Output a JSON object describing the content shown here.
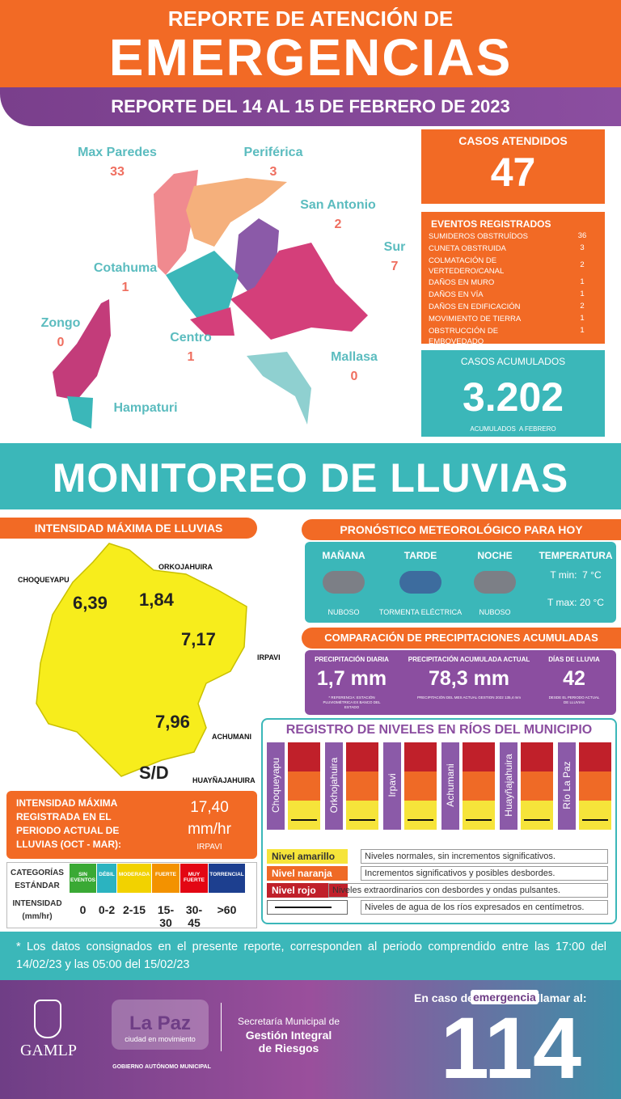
{
  "header": {
    "title_top": "REPORTE DE ATENCIÓN DE",
    "title_main": "EMERGENCIAS",
    "date": "REPORTE DEL 14 AL 15 DE FEBRERO DE 2023"
  },
  "zones": [
    {
      "name": "Max Paredes",
      "count": 33
    },
    {
      "name": "Periférica",
      "count": 3
    },
    {
      "name": "San Antonio",
      "count": 2
    },
    {
      "name": "Sur",
      "count": 7
    },
    {
      "name": "Cotahuma",
      "count": 1
    },
    {
      "name": "Zongo",
      "count": 0
    },
    {
      "name": "Centro",
      "count": 1
    },
    {
      "name": "Mallasa",
      "count": 0
    },
    {
      "name": "Hampaturi"
    }
  ],
  "cases": {
    "label": "CASOS ATENDIDOS",
    "value": 47
  },
  "events": {
    "title": "EVENTOS REGISTRADOS",
    "items": [
      {
        "label": "SUMIDEROS OBSTRUÍDOS",
        "count": 36
      },
      {
        "label": "CUNETA OBSTRUIDA",
        "count": 3
      },
      {
        "label": "COLMATACIÓN DE VERTEDERO/CANAL",
        "count": 2
      },
      {
        "label": "DAÑOS EN MURO",
        "count": 1
      },
      {
        "label": "DAÑOS EN VÍA",
        "count": 1
      },
      {
        "label": "DAÑOS EN EDIFICACIÓN",
        "count": 2
      },
      {
        "label": "MOVIMIENTO DE TIERRA",
        "count": 1
      },
      {
        "label": "OBSTRUCCIÓN DE EMBOVEDADO",
        "count": 1
      }
    ]
  },
  "accumulated": {
    "label": "CASOS ACUMULADOS",
    "value": "3.202",
    "note": "ACUMULADOS  A FEBRERO"
  },
  "section_title": "MONITOREO DE LLUVIAS",
  "rain": {
    "title": "INTENSIDAD MÁXIMA DE LLUVIAS",
    "stations": [
      {
        "name": "CHOQUEYAPU",
        "value": "6,39"
      },
      {
        "name": "ORKOJAHUIRA",
        "value": "1,84"
      },
      {
        "name": "IRPAVI",
        "value": "7,17"
      },
      {
        "name": "ACHUMANI",
        "value": "7,96"
      },
      {
        "name": "HUAYÑAJAHUIRA",
        "value": "S/D"
      }
    ],
    "max": {
      "label": "INTENSIDAD MÁXIMA REGISTRADA EN EL PERIODO ACTUAL DE LLUVIAS (OCT - MAR):",
      "value": "17,40",
      "unit": "mm/hr",
      "station": "IRPAVI"
    }
  },
  "categories": {
    "header": "CATEGORÍAS ESTÁNDAR",
    "row_label": "INTENSIDAD (mm/hr)",
    "columns": [
      {
        "name": "SIN EVENTOS",
        "range": "0",
        "color": "#3aa935"
      },
      {
        "name": "DÉBIL",
        "range": "0-2",
        "color": "#2bb3c0"
      },
      {
        "name": "MODERADA",
        "range": "2-15",
        "color": "#f2d200"
      },
      {
        "name": "FUERTE",
        "range": "15-30",
        "color": "#f39200"
      },
      {
        "name": "MUY FUERTE",
        "range": "30-45",
        "color": "#e30613"
      },
      {
        "name": "TORRENCIAL",
        "range": ">60",
        "color": "#1d3f8f"
      }
    ]
  },
  "forecast": {
    "title": "PRONÓSTICO METEOROLÓGICO PARA HOY",
    "periods": [
      {
        "name": "MAÑANA",
        "desc": "NUBOSO"
      },
      {
        "name": "TARDE",
        "desc": "TORMENTA ELÉCTRICA"
      },
      {
        "name": "NOCHE",
        "desc": "NUBOSO"
      }
    ],
    "temperature": {
      "label": "TEMPERATURA",
      "min": "T min:  7 °C",
      "max": "T max: 20 °C"
    }
  },
  "comparison": {
    "title": "COMPARACIÓN DE PRECIPITACIONES ACUMULADAS",
    "items": [
      {
        "label": "PRECIPITACIÓN DIARIA",
        "value": "1,7 mm",
        "note": "* REFERENCIA: ESTACIÓN PLUVIOMÉTRICA EX BANCO DEL ESTADO"
      },
      {
        "label": "PRECIPITACIÓN ACUMULADA ACTUAL",
        "value": "78,3 mm",
        "note": "PRECIPITACIÓN DEL MES ACTUAL GESTION 2022 135,4 mm"
      },
      {
        "label": "DÍAS DE LLUVIA",
        "value": "42",
        "note": "DESDE EL PERIODO ACTUAL DE LLUVIAS"
      }
    ]
  },
  "rivers": {
    "title": "REGISTRO DE NIVELES EN RÍOS DEL MUNICIPIO",
    "names": [
      "Choqueyapu",
      "Orkhojahuira",
      "Irpavi",
      "Achumani",
      "Huayñajahuira",
      "Río La Paz"
    ],
    "legend": [
      {
        "label": "Nivel amarillo",
        "text": "Niveles normales, sin incrementos significativos."
      },
      {
        "label": "Nivel naranja",
        "text": "Incrementos significativos y posibles desbordes."
      },
      {
        "label": "Nivel rojo",
        "text": "Niveles extraordinarios con desbordes y ondas pulsantes."
      },
      {
        "text": "Niveles de agua de los ríos expresados en centímetros."
      }
    ]
  },
  "footnote": "* Los datos consignados en el presente reporte, corresponden al periodo comprendido entre las 17:00 del 14/02/23 y las 05:00 del 15/02/23",
  "footer": {
    "call_prefix": "En caso de",
    "call_highlight": "emergencia",
    "call_suffix": "llamar al:",
    "number": "114",
    "gamlp": "GAMLP",
    "logo_title": "La Paz",
    "logo_sub": "ciudad en movimiento",
    "logo_caption": "GOBIERNO AUTÓNOMO MUNICIPAL",
    "secretaria": [
      "Secretaría Municipal de",
      "Gestión Integral",
      "de Riesgos"
    ]
  }
}
